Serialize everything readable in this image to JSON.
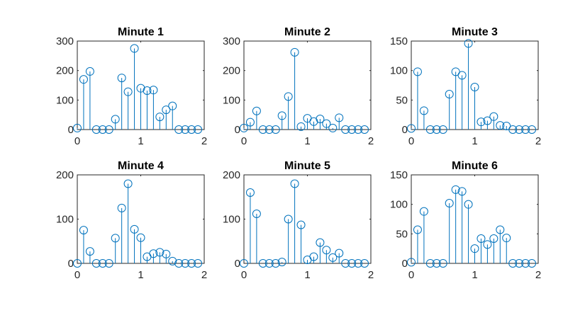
{
  "colors": {
    "series": "#0072BD",
    "axes": "#262626",
    "background": "#ffffff"
  },
  "chart_data": [
    {
      "type": "stem",
      "title": "Minute 1",
      "xlim": [
        0,
        2
      ],
      "ylim": [
        0,
        300
      ],
      "xticks": [
        "0",
        "1",
        "2"
      ],
      "yticks": [
        "0",
        "100",
        "200",
        "300"
      ],
      "x": [
        0,
        0.1,
        0.2,
        0.3,
        0.4,
        0.5,
        0.6,
        0.7,
        0.8,
        0.9,
        1.0,
        1.1,
        1.2,
        1.3,
        1.4,
        1.5,
        1.6,
        1.7,
        1.8,
        1.9
      ],
      "values": [
        5,
        170,
        197,
        0,
        0,
        0,
        35,
        175,
        128,
        275,
        140,
        132,
        134,
        43,
        67,
        80,
        0,
        0,
        0,
        0
      ]
    },
    {
      "type": "stem",
      "title": "Minute 2",
      "xlim": [
        0,
        2
      ],
      "ylim": [
        0,
        300
      ],
      "xticks": [
        "0",
        "1",
        "2"
      ],
      "yticks": [
        "0",
        "100",
        "200",
        "300"
      ],
      "x": [
        0,
        0.1,
        0.2,
        0.3,
        0.4,
        0.5,
        0.6,
        0.7,
        0.8,
        0.9,
        1.0,
        1.1,
        1.2,
        1.3,
        1.4,
        1.5,
        1.6,
        1.7,
        1.8,
        1.9
      ],
      "values": [
        5,
        25,
        63,
        0,
        0,
        0,
        47,
        112,
        262,
        10,
        38,
        27,
        36,
        20,
        5,
        40,
        0,
        0,
        0,
        0
      ]
    },
    {
      "type": "stem",
      "title": "Minute 3",
      "xlim": [
        0,
        2
      ],
      "ylim": [
        0,
        150
      ],
      "xticks": [
        "0",
        "1",
        "2"
      ],
      "yticks": [
        "0",
        "50",
        "100",
        "150"
      ],
      "x": [
        0,
        0.1,
        0.2,
        0.3,
        0.4,
        0.5,
        0.6,
        0.7,
        0.8,
        0.9,
        1.0,
        1.1,
        1.2,
        1.3,
        1.4,
        1.5,
        1.6,
        1.7,
        1.8,
        1.9
      ],
      "values": [
        2,
        98,
        32,
        0,
        0,
        0,
        60,
        98,
        92,
        146,
        72,
        13,
        15,
        22,
        7,
        6,
        0,
        0,
        0,
        0
      ]
    },
    {
      "type": "stem",
      "title": "Minute 4",
      "xlim": [
        0,
        2
      ],
      "ylim": [
        0,
        200
      ],
      "xticks": [
        "0",
        "1",
        "2"
      ],
      "yticks": [
        "0",
        "100",
        "200"
      ],
      "x": [
        0,
        0.1,
        0.2,
        0.3,
        0.4,
        0.5,
        0.6,
        0.7,
        0.8,
        0.9,
        1.0,
        1.1,
        1.2,
        1.3,
        1.4,
        1.5,
        1.6,
        1.7,
        1.8,
        1.9
      ],
      "values": [
        0,
        75,
        27,
        0,
        0,
        0,
        57,
        125,
        180,
        77,
        58,
        15,
        22,
        25,
        21,
        5,
        0,
        0,
        0,
        0
      ]
    },
    {
      "type": "stem",
      "title": "Minute 5",
      "xlim": [
        0,
        2
      ],
      "ylim": [
        0,
        200
      ],
      "xticks": [
        "0",
        "1",
        "2"
      ],
      "yticks": [
        "0",
        "100",
        "200"
      ],
      "x": [
        0,
        0.1,
        0.2,
        0.3,
        0.4,
        0.5,
        0.6,
        0.7,
        0.8,
        0.9,
        1.0,
        1.1,
        1.2,
        1.3,
        1.4,
        1.5,
        1.6,
        1.7,
        1.8,
        1.9
      ],
      "values": [
        0,
        160,
        112,
        0,
        0,
        0,
        3,
        100,
        180,
        87,
        8,
        15,
        47,
        30,
        13,
        23,
        0,
        0,
        0,
        0
      ]
    },
    {
      "type": "stem",
      "title": "Minute 6",
      "xlim": [
        0,
        2
      ],
      "ylim": [
        0,
        150
      ],
      "xticks": [
        "0",
        "1",
        "2"
      ],
      "yticks": [
        "0",
        "50",
        "100",
        "150"
      ],
      "x": [
        0,
        0.1,
        0.2,
        0.3,
        0.4,
        0.5,
        0.6,
        0.7,
        0.8,
        0.9,
        1.0,
        1.1,
        1.2,
        1.3,
        1.4,
        1.5,
        1.6,
        1.7,
        1.8,
        1.9
      ],
      "values": [
        2,
        57,
        88,
        0,
        0,
        0,
        102,
        125,
        122,
        100,
        25,
        42,
        32,
        42,
        57,
        43,
        0,
        0,
        0,
        0
      ]
    }
  ]
}
